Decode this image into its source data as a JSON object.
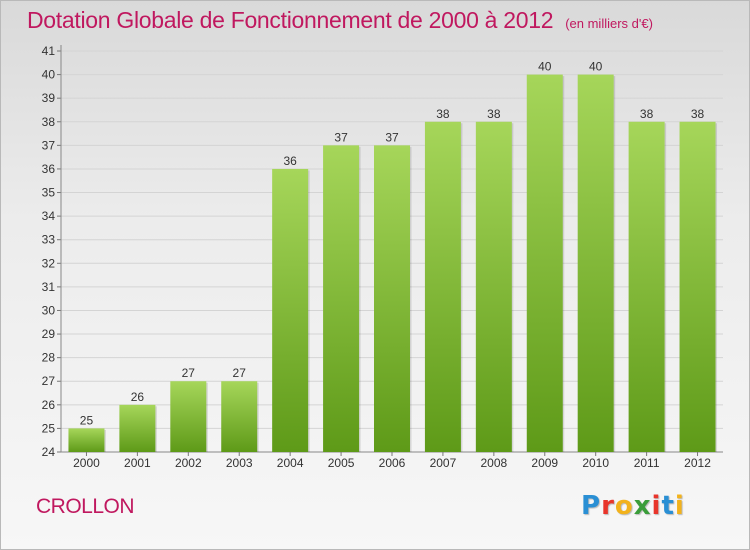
{
  "header": {
    "title": "Dotation Globale de Fonctionnement de 2000 à 2012",
    "subtitle": "(en milliers d'€)"
  },
  "footer": {
    "commune": "CROLLON",
    "logo_text": "Proxiti",
    "logo_colors": [
      "#2a8fd4",
      "#e8352b",
      "#f2b21c",
      "#3a9d3a",
      "#e8352b",
      "#2a8fd4",
      "#f2b21c"
    ]
  },
  "colors": {
    "accent": "#c0185f",
    "bar_top": "#a6d65a",
    "bar_bottom": "#5e9a18"
  },
  "chart_data": {
    "type": "bar",
    "title": "Dotation Globale de Fonctionnement de 2000 à 2012",
    "subtitle": "(en milliers d'€)",
    "categories": [
      "2000",
      "2001",
      "2002",
      "2003",
      "2004",
      "2005",
      "2006",
      "2007",
      "2008",
      "2009",
      "2010",
      "2011",
      "2012"
    ],
    "values": [
      25,
      26,
      27,
      27,
      36,
      37,
      37,
      38,
      38,
      40,
      40,
      38,
      38
    ],
    "ylim": [
      24,
      41
    ],
    "yticks": [
      24,
      25,
      26,
      27,
      28,
      29,
      30,
      31,
      32,
      33,
      34,
      35,
      36,
      37,
      38,
      39,
      40,
      41
    ],
    "xlabel": "",
    "ylabel": "",
    "grid": true,
    "data_labels": true
  }
}
